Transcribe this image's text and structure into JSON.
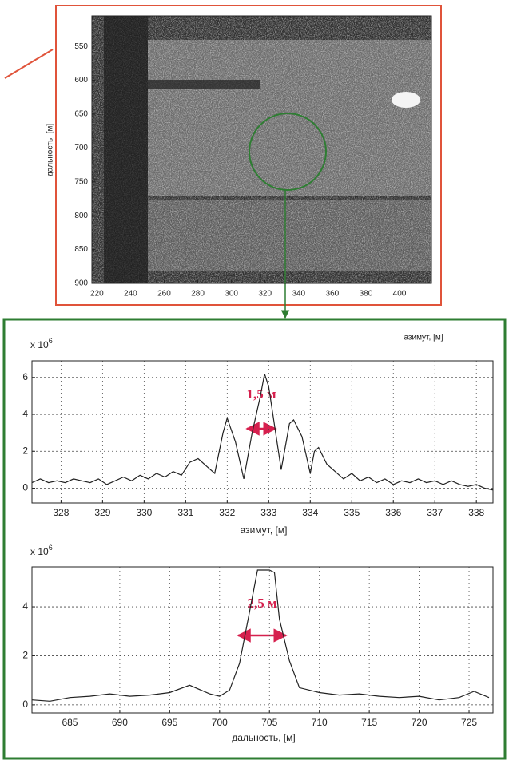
{
  "chart_data": [
    {
      "type": "image",
      "ylabel": "дальность, [м]",
      "xlabel": "азимут, [м]",
      "xlim": [
        217,
        419
      ],
      "xticks": [
        220,
        240,
        260,
        280,
        300,
        320,
        340,
        360,
        380,
        400
      ],
      "ylim": [
        900,
        505
      ],
      "yticks": [
        550,
        600,
        650,
        700,
        750,
        800,
        850,
        900
      ]
    },
    {
      "type": "line",
      "xlabel": "азимут, [м]",
      "y_multiplier": "x 10",
      "y_exponent": "6",
      "annotation": "1,5 м",
      "color": "#222222",
      "grid": true,
      "xlim": [
        327.3,
        338.4
      ],
      "xticks": [
        328,
        329,
        330,
        331,
        332,
        333,
        334,
        335,
        336,
        337,
        338
      ],
      "ylim": [
        -0.8,
        6.9
      ],
      "yticks": [
        0,
        2,
        4,
        6
      ],
      "x": [
        327.3,
        327.5,
        327.7,
        327.9,
        328.1,
        328.3,
        328.5,
        328.7,
        328.9,
        329.1,
        329.3,
        329.5,
        329.7,
        329.9,
        330.1,
        330.3,
        330.5,
        330.7,
        330.9,
        331.1,
        331.3,
        331.5,
        331.7,
        331.9,
        332.0,
        332.2,
        332.4,
        332.6,
        332.8,
        332.9,
        333.0,
        333.2,
        333.3,
        333.5,
        333.6,
        333.8,
        334.0,
        334.1,
        334.2,
        334.4,
        334.6,
        334.8,
        335.0,
        335.2,
        335.4,
        335.6,
        335.8,
        336.0,
        336.2,
        336.4,
        336.6,
        336.8,
        337.0,
        337.2,
        337.4,
        337.6,
        337.8,
        338.0,
        338.2,
        338.4
      ],
      "values": [
        0.3,
        0.5,
        0.3,
        0.4,
        0.3,
        0.5,
        0.4,
        0.3,
        0.5,
        0.2,
        0.4,
        0.6,
        0.4,
        0.7,
        0.5,
        0.8,
        0.6,
        0.9,
        0.7,
        1.4,
        1.6,
        1.2,
        0.8,
        3.0,
        3.8,
        2.5,
        0.5,
        3.0,
        5.0,
        6.2,
        5.5,
        2.5,
        1.0,
        3.5,
        3.7,
        2.8,
        0.8,
        2.0,
        2.2,
        1.3,
        0.9,
        0.5,
        0.8,
        0.4,
        0.6,
        0.3,
        0.5,
        0.2,
        0.4,
        0.3,
        0.5,
        0.3,
        0.4,
        0.2,
        0.4,
        0.2,
        0.1,
        0.2,
        0.0,
        -0.1
      ]
    },
    {
      "type": "line",
      "xlabel": "дальность, [м]",
      "y_multiplier": "x 10",
      "y_exponent": "6",
      "annotation": "2,5 м",
      "color": "#222222",
      "grid": true,
      "xlim": [
        681.2,
        727.4
      ],
      "xticks": [
        685,
        690,
        695,
        700,
        705,
        710,
        715,
        720,
        725
      ],
      "ylim": [
        -0.33,
        5.63
      ],
      "yticks": [
        0,
        2,
        4
      ],
      "x": [
        681.2,
        683,
        685,
        687,
        689,
        691,
        693,
        695,
        697,
        699,
        700,
        701,
        702,
        703,
        703.8,
        705,
        705.5,
        706,
        707,
        708,
        710,
        712,
        714,
        716,
        718,
        720,
        722,
        724,
        725.5,
        727
      ],
      "values": [
        0.2,
        0.15,
        0.3,
        0.35,
        0.45,
        0.35,
        0.4,
        0.5,
        0.8,
        0.45,
        0.35,
        0.6,
        1.7,
        3.8,
        5.5,
        5.5,
        5.4,
        3.5,
        1.8,
        0.7,
        0.5,
        0.4,
        0.45,
        0.35,
        0.3,
        0.35,
        0.2,
        0.3,
        0.55,
        0.3
      ]
    }
  ]
}
